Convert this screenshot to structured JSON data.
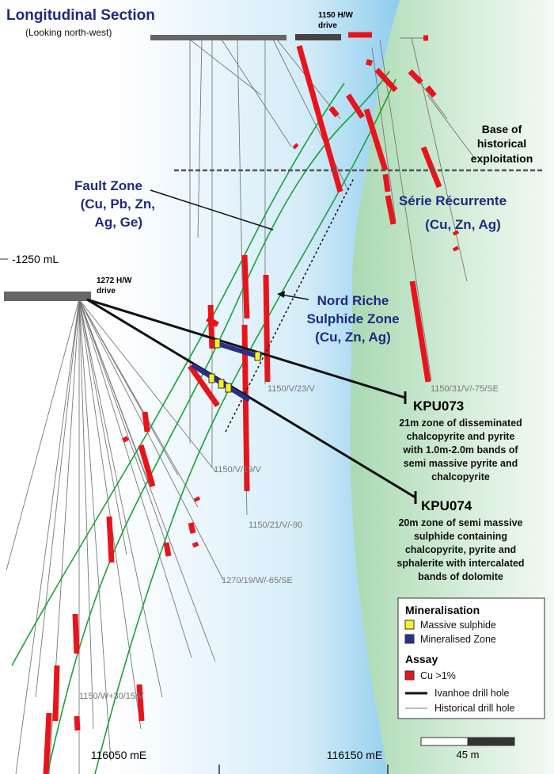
{
  "title": "Longitudinal Section",
  "subtitle": "(Looking north-west)",
  "drives": [
    [
      "1150 H/W",
      "drive"
    ],
    [
      "1272 H/W",
      "drive"
    ]
  ],
  "level_label": "-1250 mL",
  "base_label": [
    "Base of",
    "historical",
    "exploitation"
  ],
  "fault_zone": [
    "Fault Zone",
    "(Cu, Pb, Zn,",
    "Ag, Ge)"
  ],
  "serie": [
    "Série Récurrente",
    "(Cu, Zn, Ag)"
  ],
  "nord_riche": [
    "Nord Riche",
    "Sulphide Zone",
    "(Cu, Zn, Ag)"
  ],
  "hole_labels": [
    "1150/V/23/V",
    "1150/31/V/-75/SE",
    "1150/V/19/V",
    "1150/21/V/-90",
    "1270/19/W/-65/SE",
    "1150/W+30/15/V"
  ],
  "kpu073": {
    "name": "KPU073",
    "lines": [
      "21m zone of disseminated",
      "chalcopyrite and pyrite",
      "with 1.0m-2.0m bands of",
      "semi massive pyrite and",
      "chalcopyrite"
    ]
  },
  "kpu074": {
    "name": "KPU074",
    "lines": [
      "20m zone of semi massive",
      "sulphide containing",
      "chalcopyrite, pyrite and",
      "sphalerite with intercalated",
      "bands of dolomite"
    ]
  },
  "legend": {
    "mineralisation": "Mineralisation",
    "massive": "Massive sulphide",
    "zone": "Mineralised Zone",
    "assay": "Assay",
    "cu": "Cu >1%",
    "ivanhoe": "Ivanhoe drill hole",
    "historical": "Historical drill hole"
  },
  "eastings": [
    "116050 mE",
    "116150 mE"
  ],
  "scale": "45 m"
}
